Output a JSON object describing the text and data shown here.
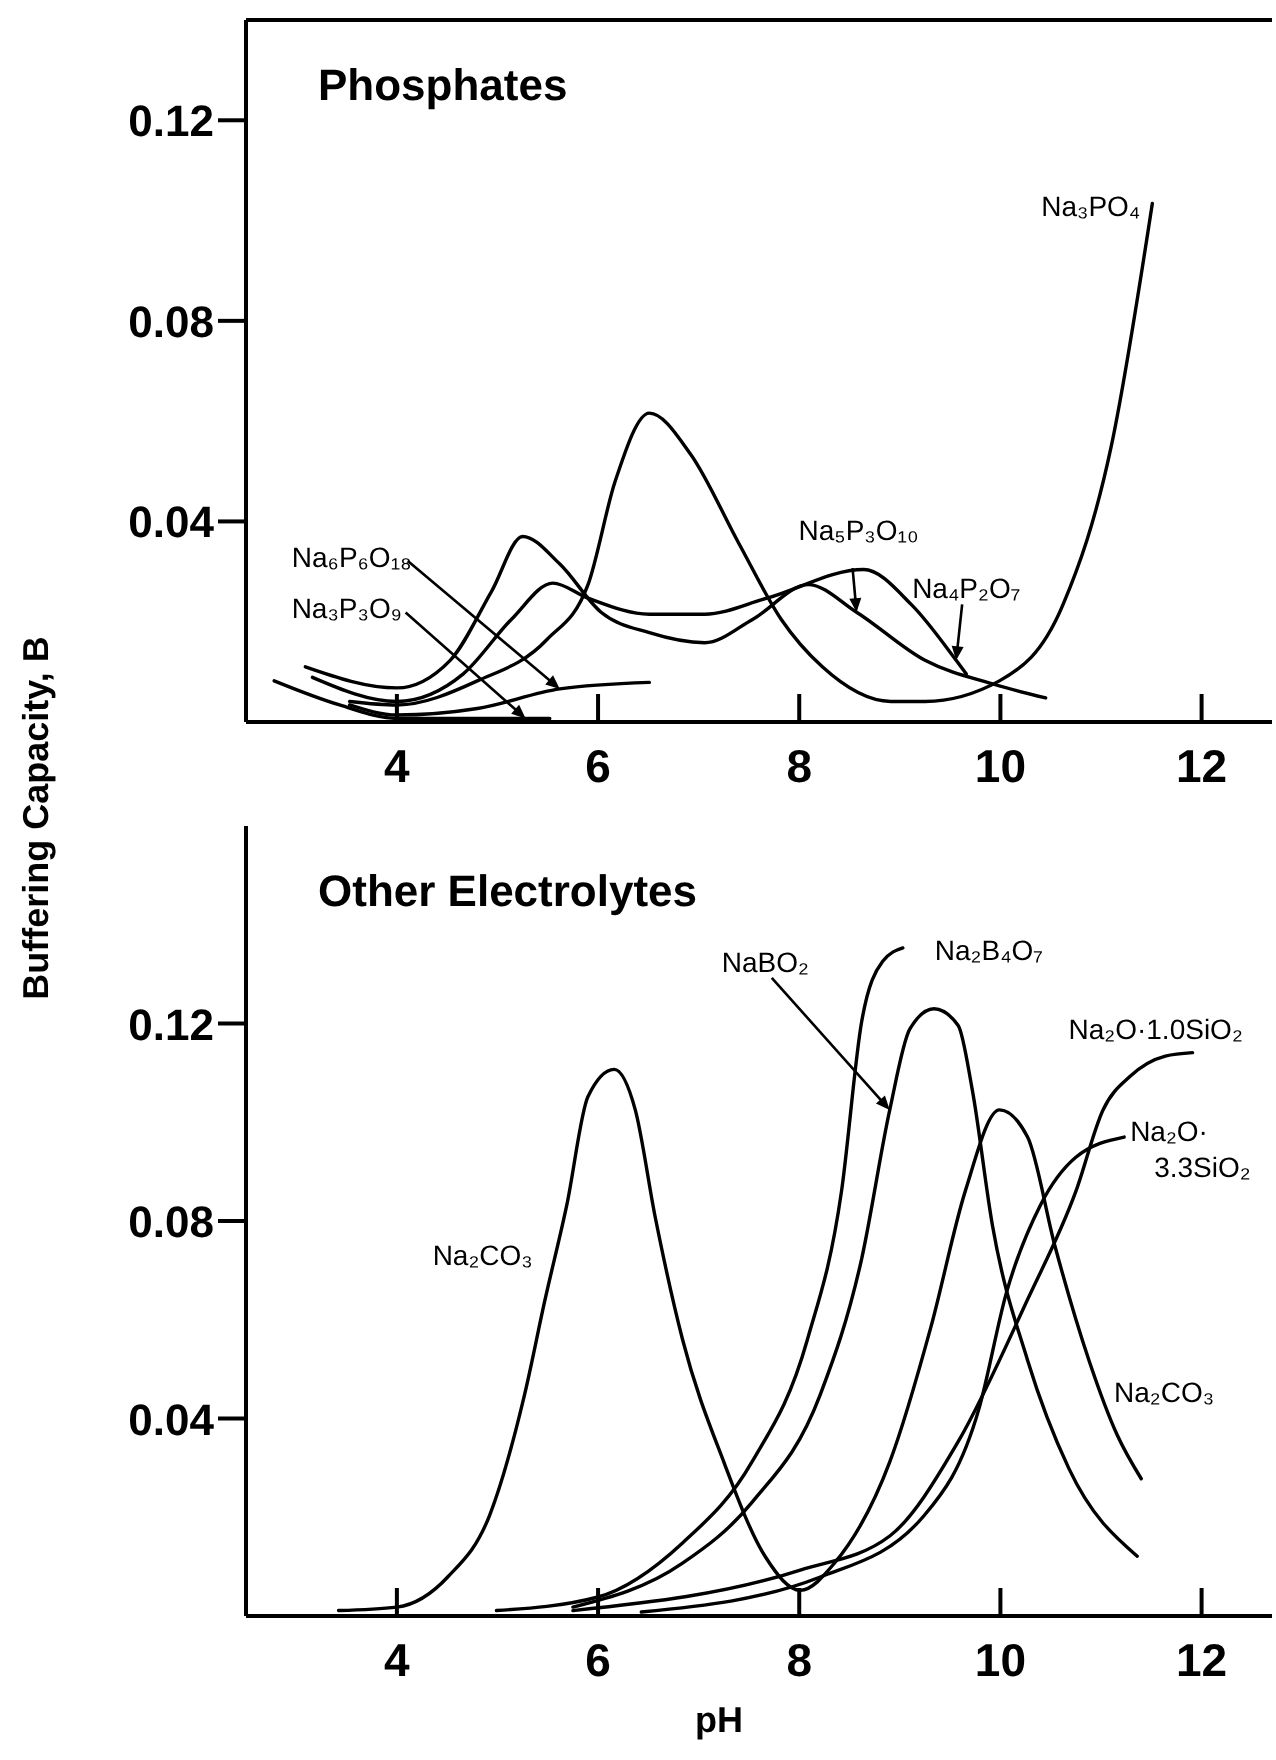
{
  "chart_data": [
    {
      "type": "line",
      "title": "Phosphates",
      "ylabel": "Buffering Capacity, B",
      "xlim": [
        2.5,
        12.7
      ],
      "ylim": [
        0,
        0.14
      ],
      "xticks": [
        4,
        6,
        8,
        10,
        12
      ],
      "yticks": [
        0.04,
        0.08,
        0.12
      ],
      "series": [
        {
          "name": "Na₃PO₄",
          "color": "#000000",
          "x": [
            3.53,
            4.0,
            4.8,
            5.49,
            5.9,
            6.17,
            6.51,
            6.92,
            7.4,
            7.82,
            8.23,
            8.91,
            9.25,
            9.99,
            10.62,
            11.1,
            11.51
          ],
          "values": [
            0.0041,
            0.0034,
            0.0082,
            0.0164,
            0.0274,
            0.048,
            0.0616,
            0.0534,
            0.0356,
            0.0205,
            0.011,
            0.0041,
            0.0041,
            0.0082,
            0.0233,
            0.0548,
            0.1034
          ]
        },
        {
          "name": "Na₅P₃O₁₀",
          "color": "#000000",
          "x": [
            3.09,
            4.0,
            4.53,
            4.94,
            5.25,
            5.62,
            6.03,
            6.51,
            7.06,
            7.54,
            8.09,
            8.57,
            9.25,
            9.94,
            10.45
          ],
          "values": [
            0.011,
            0.0068,
            0.0123,
            0.026,
            0.037,
            0.0315,
            0.0219,
            0.0178,
            0.0158,
            0.0205,
            0.0274,
            0.0219,
            0.0123,
            0.0075,
            0.0048
          ]
        },
        {
          "name": "Na₄P₂O₇",
          "color": "#000000",
          "x": [
            3.16,
            4.0,
            4.66,
            5.14,
            5.55,
            5.9,
            6.51,
            7.06,
            7.68,
            8.64,
            9.12,
            9.56,
            9.66
          ],
          "values": [
            0.0089,
            0.0041,
            0.0096,
            0.0205,
            0.0277,
            0.0247,
            0.0215,
            0.0215,
            0.0247,
            0.0304,
            0.0233,
            0.0123,
            0.0096
          ]
        },
        {
          "name": "Na₆P₆O₁₈",
          "color": "#000000",
          "x": [
            3.53,
            4.0,
            4.8,
            5.62,
            6.51
          ],
          "values": [
            0.0034,
            0.0014,
            0.0027,
            0.0066,
            0.0079
          ]
        },
        {
          "name": "Na₃P₃O₉",
          "color": "#000000",
          "x": [
            2.78,
            3.43,
            4.0,
            4.8,
            5.28,
            5.52
          ],
          "values": [
            0.0082,
            0.0034,
            0.0007,
            0.0007,
            0.0007,
            0.0007
          ]
        }
      ]
    },
    {
      "type": "line",
      "title": "Other Electrolytes",
      "xlabel": "pH",
      "xlim": [
        2.5,
        12.7
      ],
      "ylim": [
        0,
        0.16
      ],
      "xticks": [
        4,
        6,
        8,
        10,
        12
      ],
      "yticks": [
        0.04,
        0.08,
        0.12
      ],
      "annotations": [
        "Na₂CO₃"
      ],
      "series": [
        {
          "name": "Na₂CO₃",
          "color": "#000000",
          "x": [
            3.42,
            4.0,
            4.51,
            4.92,
            5.27,
            5.47,
            5.69,
            5.9,
            6.16,
            6.37,
            6.57,
            6.84,
            7.25,
            7.66,
            8.01,
            8.35,
            8.9,
            9.31,
            9.65,
            9.99,
            10.27,
            10.54,
            10.88,
            11.16,
            11.4
          ],
          "values": [
            0.0011,
            0.0018,
            0.008,
            0.0203,
            0.0449,
            0.0638,
            0.0833,
            0.1052,
            0.1107,
            0.1025,
            0.0806,
            0.056,
            0.0312,
            0.0121,
            0.0052,
            0.0107,
            0.0312,
            0.0586,
            0.086,
            0.1025,
            0.097,
            0.0751,
            0.0518,
            0.0367,
            0.0278
          ]
        },
        {
          "name": "Na₂B₄O₇",
          "color": "#000000",
          "x": [
            4.99,
            5.99,
            6.84,
            7.53,
            8.08,
            8.42,
            8.62,
            8.83,
            9.03
          ],
          "values": [
            0.0011,
            0.0038,
            0.0148,
            0.0312,
            0.0559,
            0.086,
            0.1203,
            0.1326,
            0.1353
          ]
        },
        {
          "name": "NaBO₂",
          "color": "#000000",
          "x": [
            5.75,
            6.84,
            7.53,
            8.21,
            8.62,
            8.9,
            9.1,
            9.34,
            9.58,
            9.72,
            9.92,
            10.27,
            10.68,
            11.36
          ],
          "values": [
            0.0018,
            0.0107,
            0.023,
            0.0449,
            0.0723,
            0.1025,
            0.1189,
            0.123,
            0.1196,
            0.1066,
            0.0792,
            0.0518,
            0.0299,
            0.0121
          ]
        },
        {
          "name": "Na₂O·1.0SiO₂",
          "color": "#000000",
          "x": [
            5.75,
            8.01,
            8.9,
            9.58,
            10.27,
            10.75,
            11.02,
            11.29,
            11.64,
            11.91
          ],
          "values": [
            0.0011,
            0.0093,
            0.0162,
            0.0353,
            0.0641,
            0.086,
            0.1025,
            0.1093,
            0.1134,
            0.1141
          ]
        },
        {
          "name": "Na₂O· 3.3SiO₂",
          "color": "#000000",
          "x": [
            6.43,
            8.21,
            9.24,
            9.79,
            10.06,
            10.4,
            10.75,
            11.23
          ],
          "values": [
            0.0008,
            0.0079,
            0.0203,
            0.0422,
            0.0655,
            0.0833,
            0.0929,
            0.097
          ]
        }
      ]
    }
  ]
}
